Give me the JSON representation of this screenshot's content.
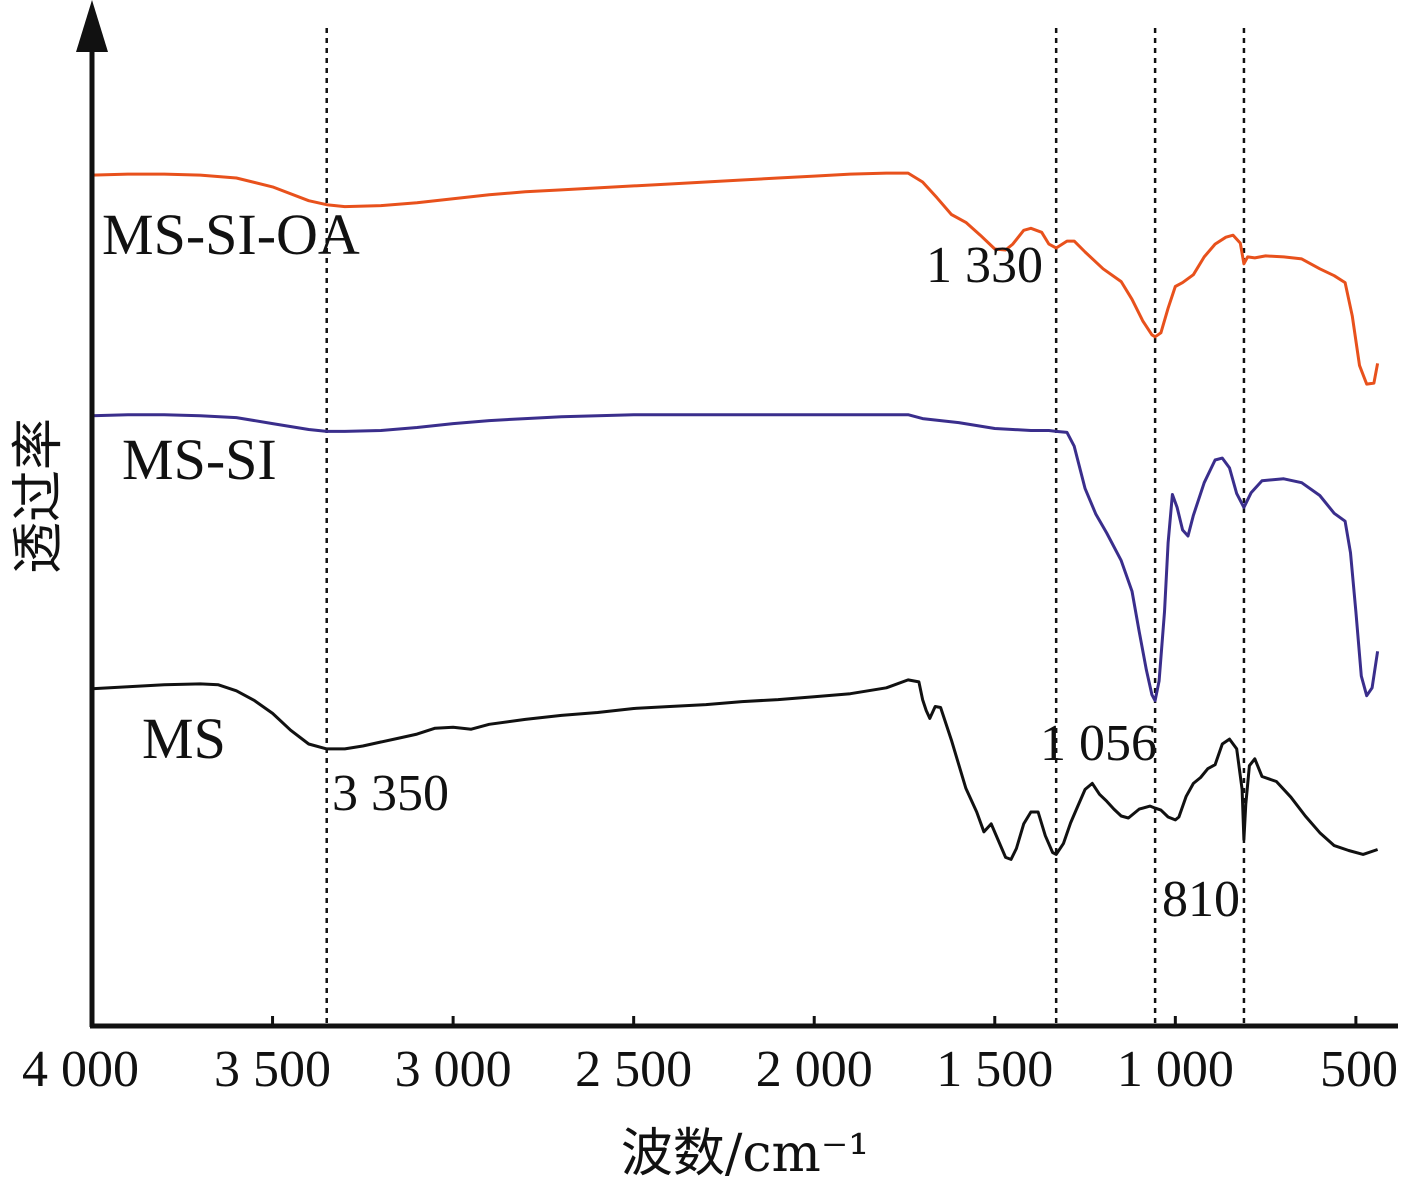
{
  "chart_data": {
    "type": "line",
    "xlabel": "波数/cm⁻¹",
    "ylabel": "透过率",
    "xlim": [
      4000,
      400
    ],
    "x_reversed": true,
    "xticks": [
      {
        "value": 4000,
        "label": "4 000"
      },
      {
        "value": 3500,
        "label": "3 500"
      },
      {
        "value": 3000,
        "label": "3 000"
      },
      {
        "value": 2500,
        "label": "2 500"
      },
      {
        "value": 2000,
        "label": "2 000"
      },
      {
        "value": 1500,
        "label": "1 500"
      },
      {
        "value": 1000,
        "label": "1 000"
      },
      {
        "value": 500,
        "label": "500"
      }
    ],
    "y_axis_arrow": true,
    "y_values_relative": true,
    "ylim": [
      0,
      100
    ],
    "reference_lines": [
      {
        "x": 3350,
        "label": "3 350"
      },
      {
        "x": 1330,
        "label": "1 330"
      },
      {
        "x": 1056,
        "label": "1 056"
      },
      {
        "x": 810,
        "label": "810"
      }
    ],
    "series": [
      {
        "name": "MS-SI-OA",
        "color": "#e8511c",
        "points": [
          [
            4000,
            86.3
          ],
          [
            3900,
            86.4
          ],
          [
            3800,
            86.4
          ],
          [
            3700,
            86.3
          ],
          [
            3600,
            86.0
          ],
          [
            3500,
            85.1
          ],
          [
            3400,
            83.7
          ],
          [
            3350,
            83.3
          ],
          [
            3300,
            83.1
          ],
          [
            3200,
            83.2
          ],
          [
            3100,
            83.5
          ],
          [
            3000,
            83.9
          ],
          [
            2900,
            84.3
          ],
          [
            2800,
            84.6
          ],
          [
            2700,
            84.8
          ],
          [
            2600,
            85.0
          ],
          [
            2500,
            85.2
          ],
          [
            2400,
            85.4
          ],
          [
            2300,
            85.6
          ],
          [
            2200,
            85.8
          ],
          [
            2100,
            86.0
          ],
          [
            2000,
            86.2
          ],
          [
            1900,
            86.4
          ],
          [
            1800,
            86.5
          ],
          [
            1740,
            86.5
          ],
          [
            1700,
            85.6
          ],
          [
            1660,
            84.0
          ],
          [
            1620,
            82.3
          ],
          [
            1580,
            81.5
          ],
          [
            1540,
            80.2
          ],
          [
            1500,
            78.8
          ],
          [
            1470,
            78.7
          ],
          [
            1450,
            79.3
          ],
          [
            1420,
            80.7
          ],
          [
            1400,
            80.9
          ],
          [
            1370,
            80.5
          ],
          [
            1350,
            79.3
          ],
          [
            1330,
            78.9
          ],
          [
            1300,
            79.6
          ],
          [
            1280,
            79.6
          ],
          [
            1250,
            78.5
          ],
          [
            1200,
            76.8
          ],
          [
            1150,
            75.5
          ],
          [
            1120,
            73.7
          ],
          [
            1090,
            71.5
          ],
          [
            1065,
            70.1
          ],
          [
            1056,
            69.9
          ],
          [
            1040,
            70.3
          ],
          [
            1020,
            72.8
          ],
          [
            1000,
            75.0
          ],
          [
            980,
            75.4
          ],
          [
            950,
            76.2
          ],
          [
            920,
            78.0
          ],
          [
            890,
            79.3
          ],
          [
            860,
            80.0
          ],
          [
            840,
            80.2
          ],
          [
            820,
            79.4
          ],
          [
            810,
            77.3
          ],
          [
            800,
            78.0
          ],
          [
            780,
            77.9
          ],
          [
            750,
            78.1
          ],
          [
            700,
            78.0
          ],
          [
            650,
            77.8
          ],
          [
            600,
            76.8
          ],
          [
            560,
            76.1
          ],
          [
            530,
            75.4
          ],
          [
            510,
            72.0
          ],
          [
            490,
            67.0
          ],
          [
            470,
            65.1
          ],
          [
            450,
            65.2
          ],
          [
            440,
            67.2
          ]
        ]
      },
      {
        "name": "MS-SI",
        "color": "#3a2e8c",
        "points": [
          [
            4000,
            61.9
          ],
          [
            3900,
            62.0
          ],
          [
            3800,
            62.0
          ],
          [
            3700,
            61.9
          ],
          [
            3600,
            61.7
          ],
          [
            3500,
            61.1
          ],
          [
            3400,
            60.5
          ],
          [
            3350,
            60.3
          ],
          [
            3300,
            60.3
          ],
          [
            3200,
            60.4
          ],
          [
            3100,
            60.7
          ],
          [
            3000,
            61.1
          ],
          [
            2900,
            61.4
          ],
          [
            2800,
            61.6
          ],
          [
            2700,
            61.8
          ],
          [
            2600,
            61.9
          ],
          [
            2500,
            62.0
          ],
          [
            2400,
            62.0
          ],
          [
            2300,
            62.0
          ],
          [
            2200,
            62.0
          ],
          [
            2100,
            62.0
          ],
          [
            2000,
            62.0
          ],
          [
            1900,
            62.0
          ],
          [
            1800,
            62.0
          ],
          [
            1740,
            62.0
          ],
          [
            1700,
            61.6
          ],
          [
            1650,
            61.4
          ],
          [
            1600,
            61.2
          ],
          [
            1500,
            60.6
          ],
          [
            1450,
            60.5
          ],
          [
            1400,
            60.4
          ],
          [
            1350,
            60.4
          ],
          [
            1330,
            60.3
          ],
          [
            1300,
            60.2
          ],
          [
            1280,
            58.8
          ],
          [
            1250,
            54.5
          ],
          [
            1220,
            51.9
          ],
          [
            1190,
            50.0
          ],
          [
            1150,
            47.2
          ],
          [
            1120,
            44.1
          ],
          [
            1100,
            40.0
          ],
          [
            1080,
            36.1
          ],
          [
            1065,
            33.6
          ],
          [
            1056,
            33.0
          ],
          [
            1045,
            35.0
          ],
          [
            1030,
            42.0
          ],
          [
            1020,
            49.0
          ],
          [
            1008,
            53.9
          ],
          [
            995,
            52.6
          ],
          [
            980,
            50.3
          ],
          [
            965,
            49.7
          ],
          [
            950,
            51.8
          ],
          [
            920,
            55.1
          ],
          [
            890,
            57.4
          ],
          [
            870,
            57.6
          ],
          [
            850,
            56.6
          ],
          [
            830,
            54.0
          ],
          [
            810,
            52.6
          ],
          [
            790,
            54.1
          ],
          [
            760,
            55.3
          ],
          [
            700,
            55.5
          ],
          [
            650,
            55.1
          ],
          [
            600,
            53.8
          ],
          [
            560,
            52.0
          ],
          [
            530,
            51.2
          ],
          [
            515,
            48.0
          ],
          [
            500,
            42.0
          ],
          [
            485,
            35.5
          ],
          [
            470,
            33.5
          ],
          [
            455,
            34.3
          ],
          [
            440,
            38.0
          ]
        ]
      },
      {
        "name": "MS",
        "color": "#111111",
        "points": [
          [
            4000,
            34.2
          ],
          [
            3900,
            34.4
          ],
          [
            3800,
            34.6
          ],
          [
            3700,
            34.7
          ],
          [
            3650,
            34.6
          ],
          [
            3600,
            34.0
          ],
          [
            3550,
            33.0
          ],
          [
            3500,
            31.7
          ],
          [
            3450,
            30.0
          ],
          [
            3400,
            28.6
          ],
          [
            3350,
            28.1
          ],
          [
            3300,
            28.1
          ],
          [
            3250,
            28.4
          ],
          [
            3200,
            28.8
          ],
          [
            3150,
            29.2
          ],
          [
            3100,
            29.6
          ],
          [
            3050,
            30.2
          ],
          [
            3000,
            30.3
          ],
          [
            2950,
            30.1
          ],
          [
            2900,
            30.6
          ],
          [
            2800,
            31.1
          ],
          [
            2700,
            31.5
          ],
          [
            2600,
            31.8
          ],
          [
            2500,
            32.2
          ],
          [
            2400,
            32.4
          ],
          [
            2300,
            32.6
          ],
          [
            2200,
            32.9
          ],
          [
            2100,
            33.1
          ],
          [
            2000,
            33.4
          ],
          [
            1900,
            33.7
          ],
          [
            1800,
            34.3
          ],
          [
            1740,
            35.1
          ],
          [
            1710,
            34.9
          ],
          [
            1700,
            33.1
          ],
          [
            1690,
            32.0
          ],
          [
            1680,
            31.2
          ],
          [
            1665,
            32.4
          ],
          [
            1650,
            32.3
          ],
          [
            1620,
            29.0
          ],
          [
            1580,
            24.1
          ],
          [
            1550,
            21.7
          ],
          [
            1530,
            19.7
          ],
          [
            1510,
            20.5
          ],
          [
            1490,
            18.8
          ],
          [
            1470,
            17.1
          ],
          [
            1455,
            16.9
          ],
          [
            1440,
            18.0
          ],
          [
            1420,
            20.5
          ],
          [
            1400,
            21.7
          ],
          [
            1380,
            21.7
          ],
          [
            1360,
            19.3
          ],
          [
            1340,
            17.6
          ],
          [
            1330,
            17.4
          ],
          [
            1310,
            18.5
          ],
          [
            1290,
            20.6
          ],
          [
            1270,
            22.3
          ],
          [
            1250,
            24.0
          ],
          [
            1230,
            24.6
          ],
          [
            1210,
            23.5
          ],
          [
            1190,
            22.8
          ],
          [
            1170,
            22.0
          ],
          [
            1150,
            21.3
          ],
          [
            1130,
            21.1
          ],
          [
            1100,
            22.0
          ],
          [
            1070,
            22.3
          ],
          [
            1056,
            22.1
          ],
          [
            1040,
            21.9
          ],
          [
            1020,
            21.2
          ],
          [
            1000,
            20.9
          ],
          [
            990,
            21.2
          ],
          [
            970,
            23.3
          ],
          [
            950,
            24.6
          ],
          [
            930,
            25.2
          ],
          [
            910,
            26.1
          ],
          [
            890,
            26.5
          ],
          [
            870,
            28.6
          ],
          [
            850,
            29.1
          ],
          [
            830,
            28.1
          ],
          [
            815,
            24.0
          ],
          [
            810,
            18.9
          ],
          [
            805,
            22.5
          ],
          [
            795,
            26.4
          ],
          [
            780,
            27.1
          ],
          [
            760,
            25.3
          ],
          [
            720,
            24.8
          ],
          [
            680,
            23.2
          ],
          [
            640,
            21.3
          ],
          [
            600,
            19.6
          ],
          [
            560,
            18.3
          ],
          [
            520,
            17.8
          ],
          [
            480,
            17.4
          ],
          [
            440,
            17.9
          ]
        ]
      }
    ]
  }
}
